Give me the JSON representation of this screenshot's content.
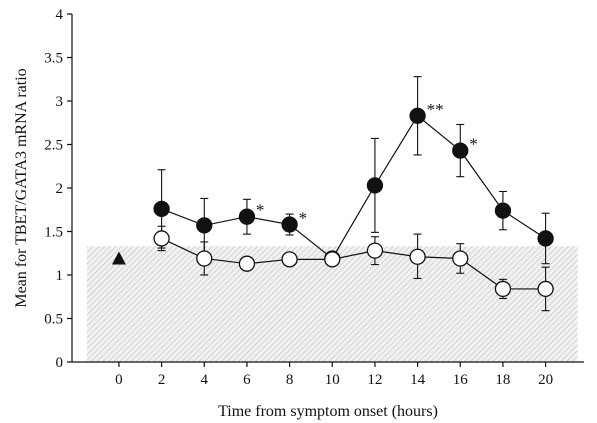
{
  "chart_data": {
    "type": "scatter",
    "xlabel": "Time from symptom onset (hours)",
    "ylabel": "Mean for TBET/GATA3 mRNA ratio",
    "xlim": [
      -2.2,
      21.8
    ],
    "ylim": [
      0,
      4
    ],
    "x_ticks": [
      0,
      2,
      4,
      6,
      8,
      10,
      12,
      14,
      16,
      18,
      20
    ],
    "x_tick_labels": [
      "0",
      "2",
      "4",
      "6",
      "8",
      "10",
      "12",
      "14",
      "16",
      "18",
      "20"
    ],
    "y_ticks": [
      0,
      0.5,
      1,
      1.5,
      2,
      2.5,
      3,
      3.5,
      4
    ],
    "y_tick_labels": [
      "0",
      "0.5",
      "1",
      "1.5",
      "2",
      "2.5",
      "3",
      "3.5",
      "4"
    ],
    "grid": false,
    "legend": "none",
    "reference_band": {
      "y0": 0,
      "y1": 1.33,
      "x0": -1.5,
      "x1": 21.5,
      "fill": "hatched-gray"
    },
    "reference_marker": {
      "x": 0,
      "y": 1.19,
      "shape": "triangle",
      "color": "#111111"
    },
    "series": [
      {
        "marker": "filled-circle",
        "color": "#111111",
        "x": [
          2,
          4,
          6,
          8,
          10,
          12,
          14,
          16,
          18,
          20
        ],
        "y": [
          1.76,
          1.57,
          1.67,
          1.58,
          1.19,
          2.03,
          2.83,
          2.43,
          1.74,
          1.42
        ],
        "err_upper": [
          2.21,
          1.88,
          1.87,
          1.7,
          1.26,
          2.57,
          3.28,
          2.73,
          1.96,
          1.71
        ],
        "err_lower": [
          1.31,
          1.26,
          1.47,
          1.46,
          1.12,
          1.49,
          2.38,
          2.13,
          1.52,
          1.13
        ],
        "annotations": [
          {
            "x": 6,
            "text": "*"
          },
          {
            "x": 8,
            "text": "*"
          },
          {
            "x": 14,
            "text": "**"
          },
          {
            "x": 16,
            "text": "*"
          }
        ]
      },
      {
        "marker": "open-circle",
        "color": "#111111",
        "x": [
          2,
          4,
          6,
          8,
          10,
          12,
          14,
          16,
          18,
          20
        ],
        "y": [
          1.42,
          1.19,
          1.13,
          1.18,
          1.18,
          1.28,
          1.21,
          1.19,
          0.84,
          0.84
        ],
        "err_upper": [
          1.56,
          1.38,
          1.2,
          1.22,
          1.25,
          1.44,
          1.47,
          1.36,
          0.95,
          1.09
        ],
        "err_lower": [
          1.28,
          1.0,
          1.06,
          1.14,
          1.11,
          1.12,
          0.96,
          1.02,
          0.73,
          0.59
        ]
      }
    ]
  }
}
